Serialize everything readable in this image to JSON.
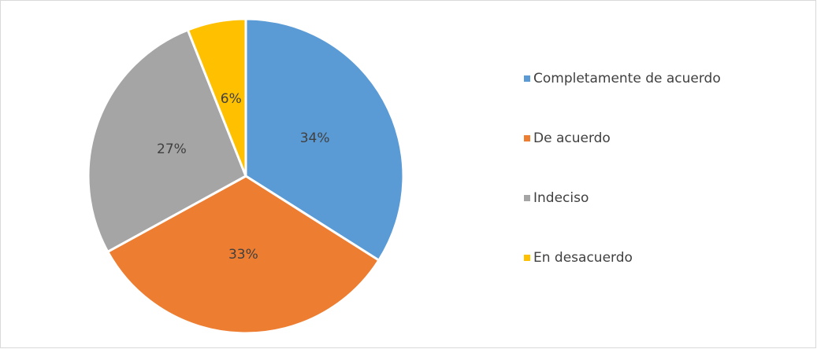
{
  "chart_data": {
    "type": "pie",
    "categories": [
      "Completamente de acuerdo",
      "De acuerdo",
      "Indeciso",
      "En desacuerdo"
    ],
    "values": [
      34,
      33,
      27,
      6
    ],
    "value_labels": [
      "34%",
      "33%",
      "27%",
      "6%"
    ],
    "colors": [
      "#5b9bd5",
      "#ed7d31",
      "#a5a5a5",
      "#ffc000"
    ],
    "legend": "right"
  }
}
